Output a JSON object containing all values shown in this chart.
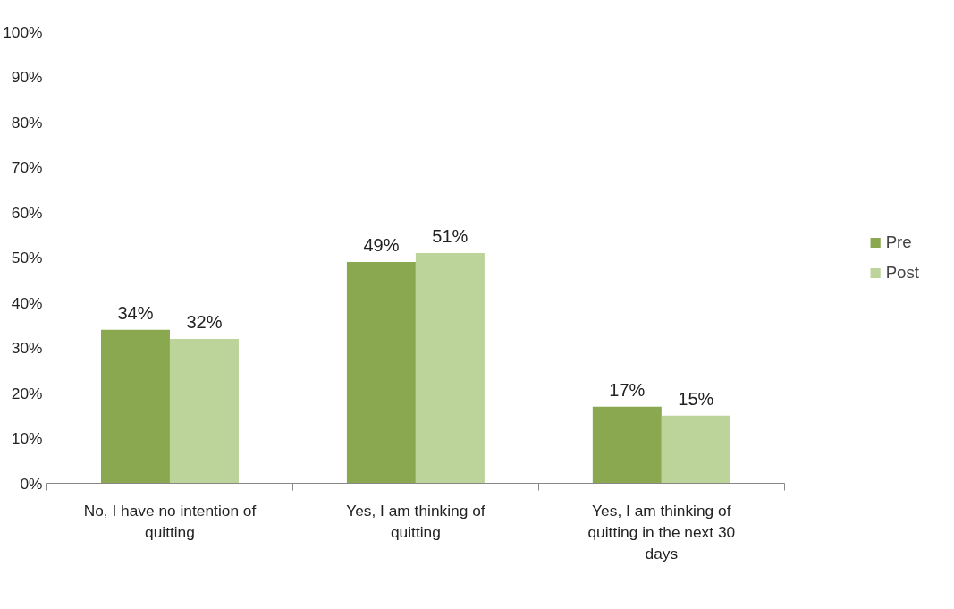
{
  "chart_data": {
    "type": "bar",
    "categories": [
      "No, I have no intention of quitting",
      "Yes, I am thinking of quitting",
      "Yes, I am thinking of quitting in the next 30 days"
    ],
    "series": [
      {
        "name": "Pre",
        "color": "#8aa84f",
        "values": [
          34,
          49,
          17
        ],
        "value_labels": [
          "34%",
          "49%",
          "17%"
        ]
      },
      {
        "name": "Post",
        "color": "#bcd39a",
        "values": [
          32,
          51,
          15
        ],
        "value_labels": [
          "32%",
          "51%",
          "15%"
        ]
      }
    ],
    "ylim": [
      0,
      100
    ],
    "yticks": [
      {
        "value": 0,
        "label": "0%"
      },
      {
        "value": 10,
        "label": "10%"
      },
      {
        "value": 20,
        "label": "20%"
      },
      {
        "value": 30,
        "label": "30%"
      },
      {
        "value": 40,
        "label": "40%"
      },
      {
        "value": 50,
        "label": "50%"
      },
      {
        "value": 60,
        "label": "60%"
      },
      {
        "value": 70,
        "label": "70%"
      },
      {
        "value": 80,
        "label": "80%"
      },
      {
        "value": 90,
        "label": "90%"
      },
      {
        "value": 100,
        "label": "100%"
      }
    ],
    "grid": false,
    "legend": "right"
  }
}
